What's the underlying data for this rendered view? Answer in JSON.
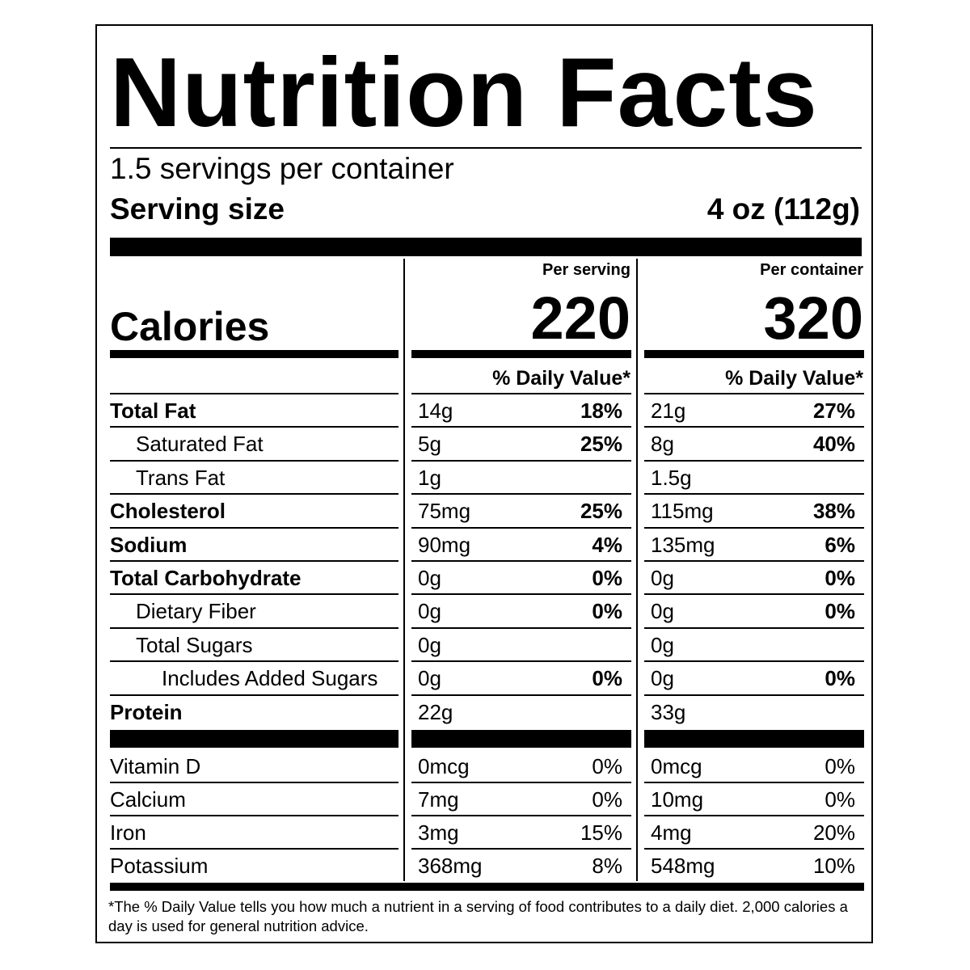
{
  "title": "Nutrition Facts",
  "servings_per_container": "1.5 servings per container",
  "serving_size": {
    "label": "Serving size",
    "value": "4 oz (112g)"
  },
  "columns": {
    "per_serving": "Per serving",
    "per_container": "Per container"
  },
  "calories": {
    "label": "Calories",
    "per_serving": "220",
    "per_container": "320"
  },
  "daily_value_header": "% Daily Value*",
  "nutrients": [
    {
      "name": "Total Fat",
      "bold": true,
      "indent": 0,
      "serving_amount": "14g",
      "serving_dv": "18%",
      "container_amount": "21g",
      "container_dv": "27%"
    },
    {
      "name": "Saturated Fat",
      "bold": false,
      "indent": 1,
      "serving_amount": "5g",
      "serving_dv": "25%",
      "container_amount": "8g",
      "container_dv": "40%"
    },
    {
      "name": "Trans Fat",
      "bold": false,
      "indent": 1,
      "serving_amount": "1g",
      "serving_dv": "",
      "container_amount": "1.5g",
      "container_dv": ""
    },
    {
      "name": "Cholesterol",
      "bold": true,
      "indent": 0,
      "serving_amount": "75mg",
      "serving_dv": "25%",
      "container_amount": "115mg",
      "container_dv": "38%"
    },
    {
      "name": "Sodium",
      "bold": true,
      "indent": 0,
      "serving_amount": "90mg",
      "serving_dv": "4%",
      "container_amount": "135mg",
      "container_dv": "6%"
    },
    {
      "name": "Total Carbohydrate",
      "bold": true,
      "indent": 0,
      "serving_amount": "0g",
      "serving_dv": "0%",
      "container_amount": "0g",
      "container_dv": "0%"
    },
    {
      "name": "Dietary Fiber",
      "bold": false,
      "indent": 1,
      "serving_amount": "0g",
      "serving_dv": "0%",
      "container_amount": "0g",
      "container_dv": "0%"
    },
    {
      "name": "Total Sugars",
      "bold": false,
      "indent": 1,
      "serving_amount": "0g",
      "serving_dv": "",
      "container_amount": "0g",
      "container_dv": ""
    },
    {
      "name": "Includes Added Sugars",
      "bold": false,
      "indent": 2,
      "serving_amount": "0g",
      "serving_dv": "0%",
      "container_amount": "0g",
      "container_dv": "0%"
    },
    {
      "name": "Protein",
      "bold": true,
      "indent": 0,
      "serving_amount": "22g",
      "serving_dv": "",
      "container_amount": "33g",
      "container_dv": ""
    }
  ],
  "vitamins": [
    {
      "name": "Vitamin D",
      "serving_amount": "0mcg",
      "serving_dv": "0%",
      "container_amount": "0mcg",
      "container_dv": "0%"
    },
    {
      "name": "Calcium",
      "serving_amount": "7mg",
      "serving_dv": "0%",
      "container_amount": "10mg",
      "container_dv": "0%"
    },
    {
      "name": "Iron",
      "serving_amount": "3mg",
      "serving_dv": "15%",
      "container_amount": "4mg",
      "container_dv": "20%"
    },
    {
      "name": "Potassium",
      "serving_amount": "368mg",
      "serving_dv": "8%",
      "container_amount": "548mg",
      "container_dv": "10%"
    }
  ],
  "footnote": "*The % Daily Value tells you how much a nutrient in a serving of food contributes to a daily diet. 2,000 calories a day is used for general nutrition advice."
}
